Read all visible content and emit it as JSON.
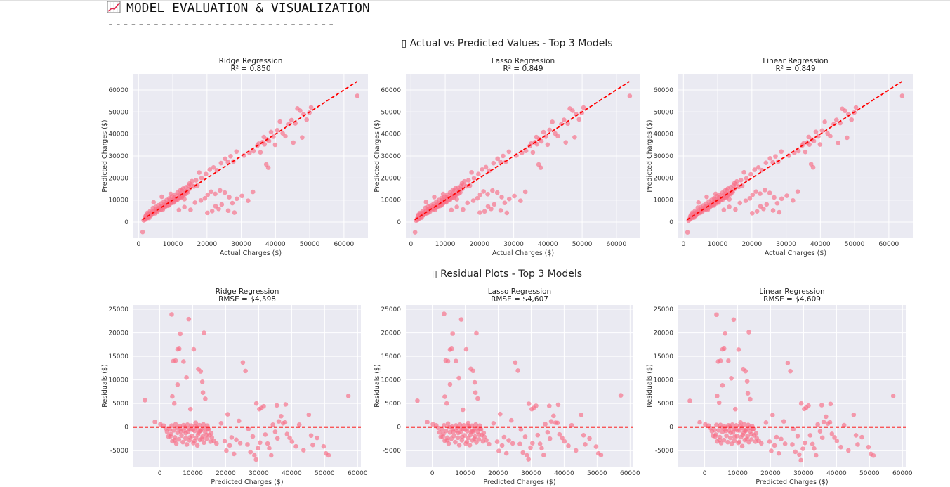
{
  "header": {
    "title": "MODEL EVALUATION & VISUALIZATION",
    "rule": "------------------------------"
  },
  "colors": {
    "points": "#f77189",
    "ref_line": "#ff0000",
    "axes_bg": "#eaeaf2",
    "grid": "#ffffff"
  },
  "chart_data": [
    {
      "type": "scatter",
      "section_title": "▯ Actual vs Predicted Values - Top 3 Models",
      "title": "Ridge Regression",
      "subtitle": "R² = 0.850",
      "xlabel": "Actual Charges ($)",
      "ylabel": "Predicted Charges ($)",
      "xlim": [
        -1500,
        67000
      ],
      "ylim": [
        -7000,
        67000
      ],
      "xticks": [
        0,
        10000,
        20000,
        30000,
        40000,
        50000,
        60000
      ],
      "yticks": [
        0,
        10000,
        20000,
        30000,
        40000,
        50000,
        60000
      ],
      "reference_line": {
        "x": [
          1100,
          63800
        ],
        "y": [
          1100,
          63800
        ]
      },
      "grid": true
    },
    {
      "type": "scatter",
      "title": "Lasso Regression",
      "subtitle": "R² = 0.849",
      "xlabel": "Actual Charges ($)",
      "ylabel": "Predicted Charges ($)",
      "xlim": [
        -1500,
        67000
      ],
      "ylim": [
        -7000,
        67000
      ],
      "xticks": [
        0,
        10000,
        20000,
        30000,
        40000,
        50000,
        60000
      ],
      "yticks": [
        0,
        10000,
        20000,
        30000,
        40000,
        50000,
        60000
      ],
      "reference_line": {
        "x": [
          1100,
          63800
        ],
        "y": [
          1100,
          63800
        ]
      },
      "grid": true
    },
    {
      "type": "scatter",
      "title": "Linear Regression",
      "subtitle": "R² = 0.849",
      "xlabel": "Actual Charges ($)",
      "ylabel": "Predicted Charges ($)",
      "xlim": [
        -1500,
        67000
      ],
      "ylim": [
        -7000,
        67000
      ],
      "xticks": [
        0,
        10000,
        20000,
        30000,
        40000,
        50000,
        60000
      ],
      "yticks": [
        0,
        10000,
        20000,
        30000,
        40000,
        50000,
        60000
      ],
      "reference_line": {
        "x": [
          1100,
          63800
        ],
        "y": [
          1100,
          63800
        ]
      },
      "grid": true
    },
    {
      "type": "scatter",
      "section_title": "▯ Residual Plots - Top 3 Models",
      "title": "Ridge Regression",
      "subtitle": "RMSE = $4,598",
      "xlabel": "Predicted Charges ($)",
      "ylabel": "Residuals ($)",
      "xlim": [
        -8000,
        61000
      ],
      "ylim": [
        -8400,
        25900
      ],
      "xticks": [
        0,
        10000,
        20000,
        30000,
        40000,
        50000,
        60000
      ],
      "yticks": [
        -5000,
        0,
        5000,
        10000,
        15000,
        20000,
        25000
      ],
      "reference_line": {
        "y": 0
      },
      "grid": true
    },
    {
      "type": "scatter",
      "title": "Lasso Regression",
      "subtitle": "RMSE = $4,607",
      "xlabel": "Predicted Charges ($)",
      "ylabel": "Residuals ($)",
      "xlim": [
        -8000,
        61000
      ],
      "ylim": [
        -8400,
        25900
      ],
      "xticks": [
        0,
        10000,
        20000,
        30000,
        40000,
        50000,
        60000
      ],
      "yticks": [
        -5000,
        0,
        5000,
        10000,
        15000,
        20000,
        25000
      ],
      "reference_line": {
        "y": 0
      },
      "grid": true
    },
    {
      "type": "scatter",
      "title": "Linear Regression",
      "subtitle": "RMSE = $4,609",
      "xlabel": "Predicted Charges ($)",
      "ylabel": "Residuals ($)",
      "xlim": [
        -8000,
        61000
      ],
      "ylim": [
        -8400,
        25900
      ],
      "xticks": [
        0,
        10000,
        20000,
        30000,
        40000,
        50000,
        60000
      ],
      "yticks": [
        -5000,
        0,
        5000,
        10000,
        15000,
        20000,
        25000
      ],
      "reference_line": {
        "y": 0
      },
      "grid": true
    }
  ],
  "scatter_points": {
    "actual_vs_predicted": [
      [
        1200,
        -4500
      ],
      [
        1500,
        800
      ],
      [
        1800,
        1500
      ],
      [
        2000,
        2500
      ],
      [
        2200,
        3200
      ],
      [
        2500,
        1800
      ],
      [
        2800,
        3600
      ],
      [
        3000,
        2600
      ],
      [
        3300,
        4000
      ],
      [
        3600,
        3000
      ],
      [
        3900,
        4500
      ],
      [
        4200,
        3800
      ],
      [
        4500,
        5200
      ],
      [
        4800,
        4000
      ],
      [
        5100,
        5800
      ],
      [
        5400,
        4600
      ],
      [
        5700,
        6200
      ],
      [
        6000,
        5400
      ],
      [
        6300,
        6800
      ],
      [
        6600,
        5800
      ],
      [
        6900,
        7200
      ],
      [
        7200,
        6400
      ],
      [
        7500,
        7800
      ],
      [
        7800,
        7000
      ],
      [
        8100,
        8200
      ],
      [
        8400,
        7400
      ],
      [
        8700,
        8800
      ],
      [
        9000,
        8000
      ],
      [
        9300,
        9200
      ],
      [
        9600,
        8600
      ],
      [
        9900,
        9800
      ],
      [
        10200,
        9200
      ],
      [
        10500,
        10400
      ],
      [
        10800,
        9800
      ],
      [
        11100,
        10800
      ],
      [
        11400,
        10200
      ],
      [
        11700,
        11200
      ],
      [
        12000,
        11000
      ],
      [
        12300,
        12000
      ],
      [
        12600,
        11600
      ],
      [
        12900,
        12600
      ],
      [
        13200,
        12200
      ],
      [
        13500,
        13200
      ],
      [
        13800,
        12800
      ],
      [
        14100,
        14200
      ],
      [
        14400,
        13600
      ],
      [
        2600,
        4200
      ],
      [
        3400,
        5000
      ],
      [
        4200,
        6400
      ],
      [
        5000,
        6900
      ],
      [
        5800,
        7600
      ],
      [
        6600,
        8400
      ],
      [
        7400,
        9300
      ],
      [
        8200,
        10000
      ],
      [
        9000,
        10800
      ],
      [
        9800,
        11600
      ],
      [
        10600,
        12400
      ],
      [
        11400,
        13400
      ],
      [
        12200,
        14400
      ],
      [
        13000,
        15200
      ],
      [
        13800,
        15800
      ],
      [
        14600,
        16400
      ],
      [
        15400,
        17000
      ],
      [
        16200,
        16200
      ],
      [
        4400,
        9000
      ],
      [
        6800,
        11500
      ],
      [
        9400,
        12800
      ],
      [
        11800,
        5500
      ],
      [
        13400,
        6800
      ],
      [
        15200,
        5600
      ],
      [
        16500,
        8800
      ],
      [
        18200,
        9800
      ],
      [
        19400,
        10800
      ],
      [
        20200,
        12400
      ],
      [
        21200,
        13800
      ],
      [
        22400,
        12800
      ],
      [
        23800,
        14400
      ],
      [
        25200,
        13400
      ],
      [
        26500,
        11300
      ],
      [
        27400,
        8600
      ],
      [
        28700,
        10600
      ],
      [
        30200,
        11900
      ],
      [
        32000,
        9700
      ],
      [
        33400,
        13700
      ],
      [
        20100,
        4200
      ],
      [
        21500,
        5000
      ],
      [
        22500,
        7200
      ],
      [
        23400,
        6000
      ],
      [
        24300,
        8000
      ],
      [
        26200,
        5200
      ],
      [
        28000,
        4300
      ],
      [
        18400,
        20000
      ],
      [
        19700,
        21800
      ],
      [
        20800,
        23800
      ],
      [
        21900,
        24800
      ],
      [
        22900,
        23500
      ],
      [
        24100,
        26800
      ],
      [
        25300,
        28800
      ],
      [
        26100,
        27300
      ],
      [
        26900,
        29900
      ],
      [
        27700,
        27500
      ],
      [
        28600,
        32000
      ],
      [
        16800,
        19000
      ],
      [
        17700,
        22500
      ],
      [
        14900,
        17500
      ],
      [
        15600,
        18600
      ],
      [
        17200,
        16600
      ],
      [
        30800,
        30200
      ],
      [
        32400,
        31400
      ],
      [
        33600,
        32200
      ],
      [
        34700,
        34700
      ],
      [
        35600,
        31700
      ],
      [
        36200,
        36300
      ],
      [
        36800,
        35300
      ],
      [
        37500,
        37500
      ],
      [
        38100,
        36800
      ],
      [
        38700,
        40900
      ],
      [
        39400,
        38800
      ],
      [
        39900,
        35100
      ],
      [
        40500,
        41700
      ],
      [
        41300,
        45600
      ],
      [
        42100,
        40300
      ],
      [
        42900,
        39000
      ],
      [
        43900,
        44400
      ],
      [
        44700,
        46300
      ],
      [
        45800,
        44800
      ],
      [
        46400,
        51600
      ],
      [
        47200,
        50600
      ],
      [
        48200,
        49000
      ],
      [
        49100,
        46500
      ],
      [
        49900,
        49700
      ],
      [
        37300,
        26200
      ],
      [
        37900,
        24700
      ],
      [
        45200,
        36100
      ],
      [
        47800,
        38400
      ],
      [
        50400,
        52100
      ],
      [
        63900,
        57300
      ],
      [
        36600,
        38600
      ],
      [
        35100,
        35600
      ],
      [
        3100,
        1900
      ],
      [
        4900,
        4900
      ],
      [
        7100,
        5700
      ],
      [
        8900,
        7600
      ],
      [
        10300,
        8900
      ],
      [
        12500,
        10900
      ],
      [
        1900,
        1100
      ],
      [
        2300,
        1900
      ],
      [
        3700,
        3300
      ],
      [
        5300,
        5200
      ],
      [
        6100,
        6100
      ],
      [
        7900,
        7400
      ],
      [
        9500,
        8900
      ],
      [
        11200,
        10400
      ],
      [
        12800,
        11700
      ],
      [
        14000,
        13800
      ],
      [
        15000,
        15200
      ],
      [
        13400,
        10400
      ],
      [
        12700,
        14300
      ],
      [
        11900,
        12500
      ],
      [
        10400,
        11200
      ],
      [
        9200,
        10100
      ]
    ],
    "residuals": [
      [
        -4500,
        5700
      ],
      [
        -1500,
        1100
      ],
      [
        200,
        600
      ],
      [
        1200,
        300
      ],
      [
        1800,
        -300
      ],
      [
        2200,
        -1000
      ],
      [
        2600,
        -2000
      ],
      [
        3000,
        -500
      ],
      [
        3400,
        -1500
      ],
      [
        3800,
        -3000
      ],
      [
        4200,
        -700
      ],
      [
        4600,
        -2200
      ],
      [
        5000,
        -3500
      ],
      [
        5400,
        -1200
      ],
      [
        5800,
        -2600
      ],
      [
        6200,
        -400
      ],
      [
        6600,
        -1800
      ],
      [
        7000,
        -3200
      ],
      [
        7400,
        -800
      ],
      [
        7800,
        -2400
      ],
      [
        8200,
        -3700
      ],
      [
        8600,
        -1000
      ],
      [
        9000,
        -2800
      ],
      [
        9400,
        -500
      ],
      [
        9800,
        -1900
      ],
      [
        10200,
        -3400
      ],
      [
        10600,
        -800
      ],
      [
        11000,
        -2300
      ],
      [
        11400,
        -3900
      ],
      [
        11800,
        -1200
      ],
      [
        12200,
        -2700
      ],
      [
        12600,
        -600
      ],
      [
        13000,
        -2000
      ],
      [
        13400,
        -3300
      ],
      [
        13800,
        -1100
      ],
      [
        14200,
        -2500
      ],
      [
        14600,
        -400
      ],
      [
        15000,
        -1700
      ],
      [
        15400,
        -3100
      ],
      [
        5200,
        -200
      ],
      [
        6400,
        -900
      ],
      [
        7600,
        -100
      ],
      [
        8800,
        -300
      ],
      [
        10000,
        -600
      ],
      [
        11200,
        -100
      ],
      [
        12400,
        -800
      ],
      [
        13600,
        -200
      ],
      [
        14800,
        -500
      ],
      [
        3600,
        300
      ],
      [
        4800,
        600
      ],
      [
        6000,
        200
      ],
      [
        7200,
        400
      ],
      [
        8400,
        500
      ],
      [
        9600,
        300
      ],
      [
        10800,
        200
      ],
      [
        12000,
        400
      ],
      [
        13200,
        600
      ],
      [
        14400,
        300
      ],
      [
        15600,
        -1300
      ],
      [
        16400,
        -2900
      ],
      [
        17200,
        -3500
      ],
      [
        3800,
        6500
      ],
      [
        4400,
        5000
      ],
      [
        5400,
        9000
      ],
      [
        4100,
        14000
      ],
      [
        4800,
        14100
      ],
      [
        5400,
        16500
      ],
      [
        5900,
        16600
      ],
      [
        6200,
        19800
      ],
      [
        7200,
        13900
      ],
      [
        8100,
        10500
      ],
      [
        8800,
        22900
      ],
      [
        10300,
        16500
      ],
      [
        11700,
        12300
      ],
      [
        12400,
        11800
      ],
      [
        12900,
        9600
      ],
      [
        13400,
        20000
      ],
      [
        13100,
        7300
      ],
      [
        13800,
        6000
      ],
      [
        3600,
        23900
      ],
      [
        9300,
        3800
      ],
      [
        10900,
        900
      ],
      [
        12100,
        -800
      ],
      [
        14200,
        -1700
      ],
      [
        15800,
        -2200
      ],
      [
        19700,
        -3000
      ],
      [
        20200,
        -5000
      ],
      [
        21200,
        -3900
      ],
      [
        21800,
        -2200
      ],
      [
        22500,
        -5700
      ],
      [
        23200,
        -2700
      ],
      [
        24400,
        -3400
      ],
      [
        25200,
        13700
      ],
      [
        26000,
        11900
      ],
      [
        26600,
        -3700
      ],
      [
        27500,
        -5300
      ],
      [
        28200,
        -2000
      ],
      [
        28700,
        -6000
      ],
      [
        29200,
        -6900
      ],
      [
        29800,
        -4500
      ],
      [
        30400,
        -3300
      ],
      [
        29300,
        5000
      ],
      [
        30200,
        3800
      ],
      [
        30800,
        4000
      ],
      [
        31500,
        4400
      ],
      [
        32000,
        -1600
      ],
      [
        32700,
        -3500
      ],
      [
        33200,
        -4500
      ],
      [
        33800,
        -6000
      ],
      [
        34300,
        500
      ],
      [
        35000,
        -1000
      ],
      [
        35700,
        -2400
      ],
      [
        36100,
        1200
      ],
      [
        36800,
        2300
      ],
      [
        37400,
        800
      ],
      [
        38000,
        1000
      ],
      [
        38600,
        -1500
      ],
      [
        39400,
        -2300
      ],
      [
        40100,
        -3100
      ],
      [
        41300,
        -4100
      ],
      [
        42300,
        500
      ],
      [
        43600,
        -4900
      ],
      [
        45200,
        2600
      ],
      [
        45900,
        -1800
      ],
      [
        46400,
        -3800
      ],
      [
        47700,
        -2300
      ],
      [
        49700,
        -4100
      ],
      [
        50400,
        -5600
      ],
      [
        51200,
        -6000
      ],
      [
        57200,
        6600
      ],
      [
        35500,
        4600
      ],
      [
        38200,
        4800
      ],
      [
        18600,
        800
      ],
      [
        20600,
        2700
      ],
      [
        24000,
        1300
      ],
      [
        26900,
        -400
      ],
      [
        3200,
        -2000
      ],
      [
        4500,
        -2800
      ],
      [
        7900,
        -1300
      ],
      [
        9100,
        -2200
      ],
      [
        10500,
        -3000
      ],
      [
        11600,
        -1600
      ],
      [
        12800,
        -2500
      ]
    ]
  }
}
